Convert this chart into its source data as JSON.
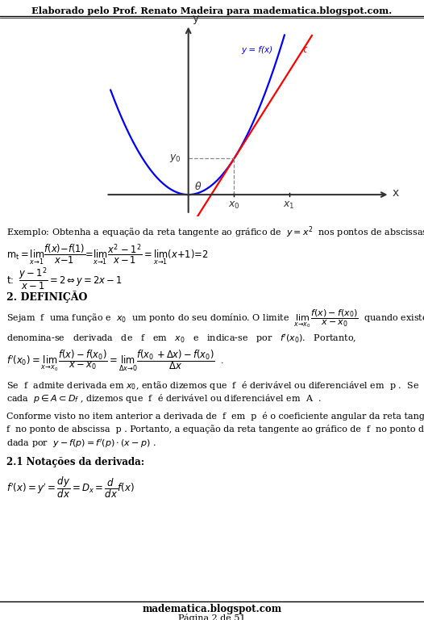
{
  "header_text": "Elaborado pelo Prof. Renato Madeira para madematica.blogspot.com.",
  "footer_line1": "madematica.blogspot.com",
  "footer_line2": "Página 2 de 51",
  "background_color": "#ffffff"
}
